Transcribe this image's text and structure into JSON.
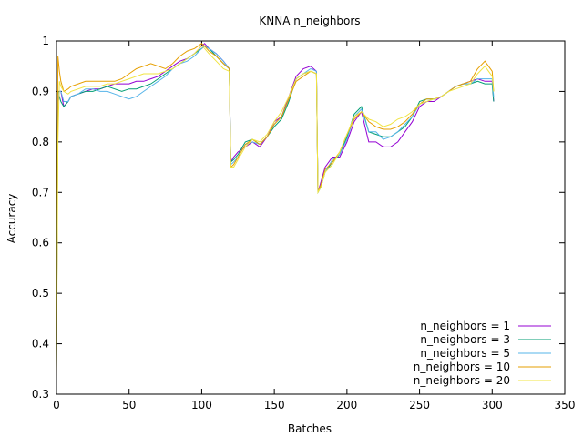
{
  "chart_data": {
    "type": "line",
    "title": "KNNA n_neighbors",
    "xlabel": "Batches",
    "ylabel": "Accuracy",
    "xlim": [
      0,
      350
    ],
    "ylim": [
      0.3,
      1
    ],
    "xticks": [
      0,
      50,
      100,
      150,
      200,
      250,
      300,
      350
    ],
    "yticks": [
      0.3,
      0.4,
      0.5,
      0.6,
      0.7,
      0.8,
      0.9,
      1
    ],
    "ytick_labels": [
      "0.3",
      "0.4",
      "0.5",
      "0.6",
      "0.7",
      "0.8",
      "0.9",
      "1"
    ],
    "grid": false,
    "legend_position": "bottom-right",
    "x": [
      0,
      1,
      2,
      3,
      5,
      8,
      10,
      15,
      20,
      25,
      30,
      35,
      40,
      45,
      50,
      55,
      60,
      65,
      70,
      75,
      80,
      85,
      90,
      95,
      100,
      102,
      105,
      110,
      115,
      119,
      120,
      122,
      125,
      130,
      135,
      140,
      145,
      150,
      155,
      160,
      165,
      170,
      175,
      179,
      180,
      182,
      185,
      190,
      195,
      200,
      205,
      210,
      215,
      220,
      225,
      230,
      235,
      240,
      245,
      250,
      255,
      260,
      265,
      270,
      275,
      280,
      285,
      290,
      295,
      300,
      301
    ],
    "series": [
      {
        "name": "n_neighbors = 1",
        "color": "#9400d3",
        "values": [
          0.38,
          0.88,
          0.9,
          0.9,
          0.87,
          0.88,
          0.89,
          0.895,
          0.9,
          0.905,
          0.905,
          0.91,
          0.915,
          0.915,
          0.915,
          0.92,
          0.92,
          0.925,
          0.93,
          0.94,
          0.95,
          0.96,
          0.965,
          0.975,
          0.99,
          0.995,
          0.985,
          0.975,
          0.96,
          0.945,
          0.76,
          0.77,
          0.78,
          0.79,
          0.8,
          0.79,
          0.81,
          0.84,
          0.85,
          0.89,
          0.93,
          0.945,
          0.95,
          0.94,
          0.7,
          0.72,
          0.75,
          0.77,
          0.77,
          0.8,
          0.84,
          0.86,
          0.8,
          0.8,
          0.79,
          0.79,
          0.8,
          0.82,
          0.84,
          0.87,
          0.88,
          0.88,
          0.89,
          0.9,
          0.91,
          0.915,
          0.92,
          0.925,
          0.92,
          0.92,
          0.88
        ]
      },
      {
        "name": "n_neighbors = 3",
        "color": "#009e73",
        "values": [
          0.35,
          0.9,
          0.89,
          0.88,
          0.87,
          0.88,
          0.89,
          0.895,
          0.9,
          0.9,
          0.905,
          0.91,
          0.905,
          0.9,
          0.905,
          0.905,
          0.91,
          0.915,
          0.925,
          0.935,
          0.945,
          0.955,
          0.965,
          0.975,
          0.985,
          0.99,
          0.985,
          0.97,
          0.955,
          0.945,
          0.76,
          0.765,
          0.775,
          0.8,
          0.805,
          0.795,
          0.81,
          0.83,
          0.845,
          0.88,
          0.925,
          0.935,
          0.94,
          0.935,
          0.7,
          0.71,
          0.74,
          0.76,
          0.775,
          0.81,
          0.855,
          0.87,
          0.82,
          0.815,
          0.81,
          0.81,
          0.82,
          0.83,
          0.85,
          0.88,
          0.885,
          0.885,
          0.89,
          0.9,
          0.91,
          0.915,
          0.915,
          0.92,
          0.915,
          0.915,
          0.88
        ]
      },
      {
        "name": "n_neighbors = 5",
        "color": "#56b4e9",
        "values": [
          0.4,
          0.89,
          0.9,
          0.9,
          0.88,
          0.88,
          0.89,
          0.895,
          0.905,
          0.905,
          0.9,
          0.9,
          0.895,
          0.89,
          0.885,
          0.89,
          0.9,
          0.91,
          0.92,
          0.93,
          0.945,
          0.955,
          0.96,
          0.97,
          0.985,
          0.99,
          0.985,
          0.975,
          0.96,
          0.945,
          0.755,
          0.76,
          0.77,
          0.795,
          0.8,
          0.795,
          0.81,
          0.835,
          0.85,
          0.885,
          0.925,
          0.935,
          0.945,
          0.94,
          0.7,
          0.715,
          0.74,
          0.765,
          0.775,
          0.805,
          0.85,
          0.865,
          0.82,
          0.82,
          0.805,
          0.81,
          0.82,
          0.835,
          0.85,
          0.875,
          0.88,
          0.885,
          0.89,
          0.9,
          0.91,
          0.915,
          0.915,
          0.925,
          0.925,
          0.925,
          0.89
        ]
      },
      {
        "name": "n_neighbors = 10",
        "color": "#e69f00",
        "values": [
          0.33,
          0.97,
          0.94,
          0.92,
          0.9,
          0.905,
          0.91,
          0.915,
          0.92,
          0.92,
          0.92,
          0.92,
          0.92,
          0.925,
          0.935,
          0.945,
          0.95,
          0.955,
          0.95,
          0.945,
          0.955,
          0.97,
          0.98,
          0.985,
          0.995,
          0.99,
          0.98,
          0.97,
          0.955,
          0.945,
          0.75,
          0.755,
          0.77,
          0.795,
          0.805,
          0.795,
          0.81,
          0.835,
          0.85,
          0.885,
          0.92,
          0.93,
          0.94,
          0.935,
          0.7,
          0.715,
          0.745,
          0.76,
          0.78,
          0.815,
          0.845,
          0.86,
          0.84,
          0.83,
          0.825,
          0.825,
          0.83,
          0.84,
          0.855,
          0.875,
          0.885,
          0.885,
          0.89,
          0.9,
          0.91,
          0.915,
          0.92,
          0.945,
          0.96,
          0.94,
          0.9
        ]
      },
      {
        "name": "n_neighbors = 20",
        "color": "#f0e442",
        "values": [
          0.35,
          0.8,
          0.92,
          0.91,
          0.9,
          0.895,
          0.9,
          0.905,
          0.91,
          0.91,
          0.91,
          0.915,
          0.915,
          0.92,
          0.925,
          0.93,
          0.935,
          0.935,
          0.935,
          0.94,
          0.945,
          0.955,
          0.965,
          0.975,
          0.99,
          0.985,
          0.975,
          0.96,
          0.945,
          0.94,
          0.75,
          0.75,
          0.765,
          0.79,
          0.805,
          0.8,
          0.815,
          0.84,
          0.86,
          0.89,
          0.925,
          0.935,
          0.94,
          0.935,
          0.7,
          0.71,
          0.74,
          0.755,
          0.78,
          0.815,
          0.85,
          0.86,
          0.845,
          0.84,
          0.83,
          0.835,
          0.845,
          0.85,
          0.86,
          0.875,
          0.88,
          0.885,
          0.89,
          0.9,
          0.905,
          0.91,
          0.915,
          0.935,
          0.95,
          0.93,
          0.9
        ]
      }
    ]
  }
}
